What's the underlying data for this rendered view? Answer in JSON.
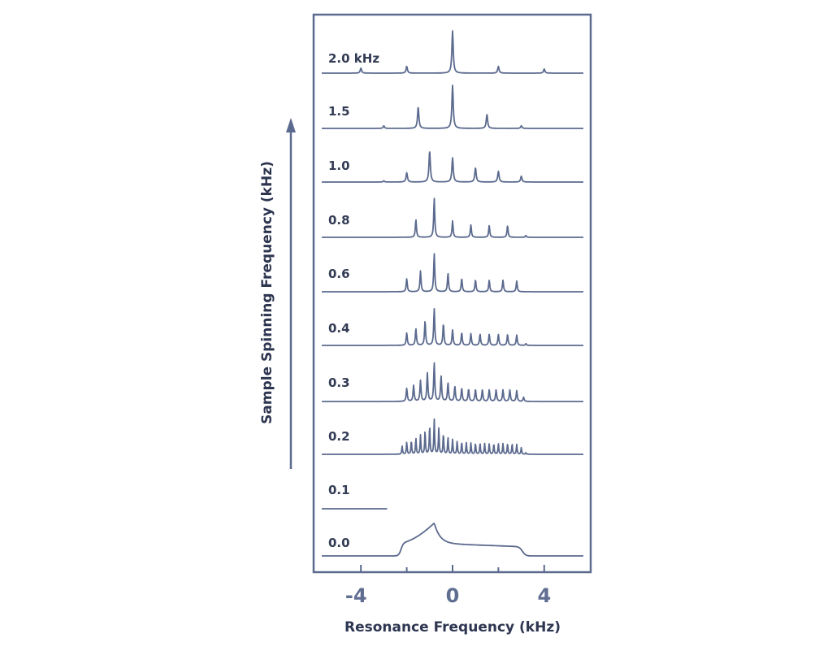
{
  "chart_data": {
    "type": "line",
    "title": "",
    "xlabel": "Resonance Frequency (kHz)",
    "ylabel": "Sample Spinning Frequency (kHz)",
    "xlim": [
      -5.4,
      5.9
    ],
    "x_ticks": [
      "-4",
      "0",
      "4"
    ],
    "x_tick_values": [
      -4,
      0,
      4
    ],
    "x_minor_ticks": [
      -2,
      2
    ],
    "grid": false,
    "legend": "none",
    "color": "#5b6a8e",
    "frame_color": "#5b6a8e",
    "isotropic_shift_khz": -0.8,
    "powder_pattern": {
      "low_edge": -2.25,
      "high_edge": 3.05,
      "peak": -0.8
    },
    "series": [
      {
        "label": "2.0 kHz",
        "spin_rate": 2.0,
        "sidebands": [
          [
            -4.0,
            0.12
          ],
          [
            -2.0,
            0.16
          ],
          [
            0.0,
            1.0
          ],
          [
            2.0,
            0.16
          ],
          [
            4.0,
            0.1
          ]
        ]
      },
      {
        "label": "1.5",
        "spin_rate": 1.5,
        "sidebands": [
          [
            -3.0,
            0.06
          ],
          [
            -1.5,
            0.5
          ],
          [
            0.0,
            1.0
          ],
          [
            1.5,
            0.33
          ],
          [
            3.0,
            0.06
          ]
        ]
      },
      {
        "label": "1.0",
        "spin_rate": 1.0,
        "sidebands": [
          [
            -3.0,
            0.03
          ],
          [
            -2.0,
            0.24
          ],
          [
            -1.0,
            0.8
          ],
          [
            0.0,
            0.62
          ],
          [
            1.0,
            0.37
          ],
          [
            2.0,
            0.28
          ],
          [
            3.0,
            0.15
          ]
        ]
      },
      {
        "label": "0.8",
        "spin_rate": 0.8
      },
      {
        "label": "0.6",
        "spin_rate": 0.6
      },
      {
        "label": "0.4",
        "spin_rate": 0.4
      },
      {
        "label": "0.3",
        "spin_rate": 0.3
      },
      {
        "label": "0.2",
        "spin_rate": 0.2
      },
      {
        "label": "0.1",
        "spin_rate": 0.1
      },
      {
        "label": "0.0",
        "spin_rate": 0.0
      }
    ]
  }
}
